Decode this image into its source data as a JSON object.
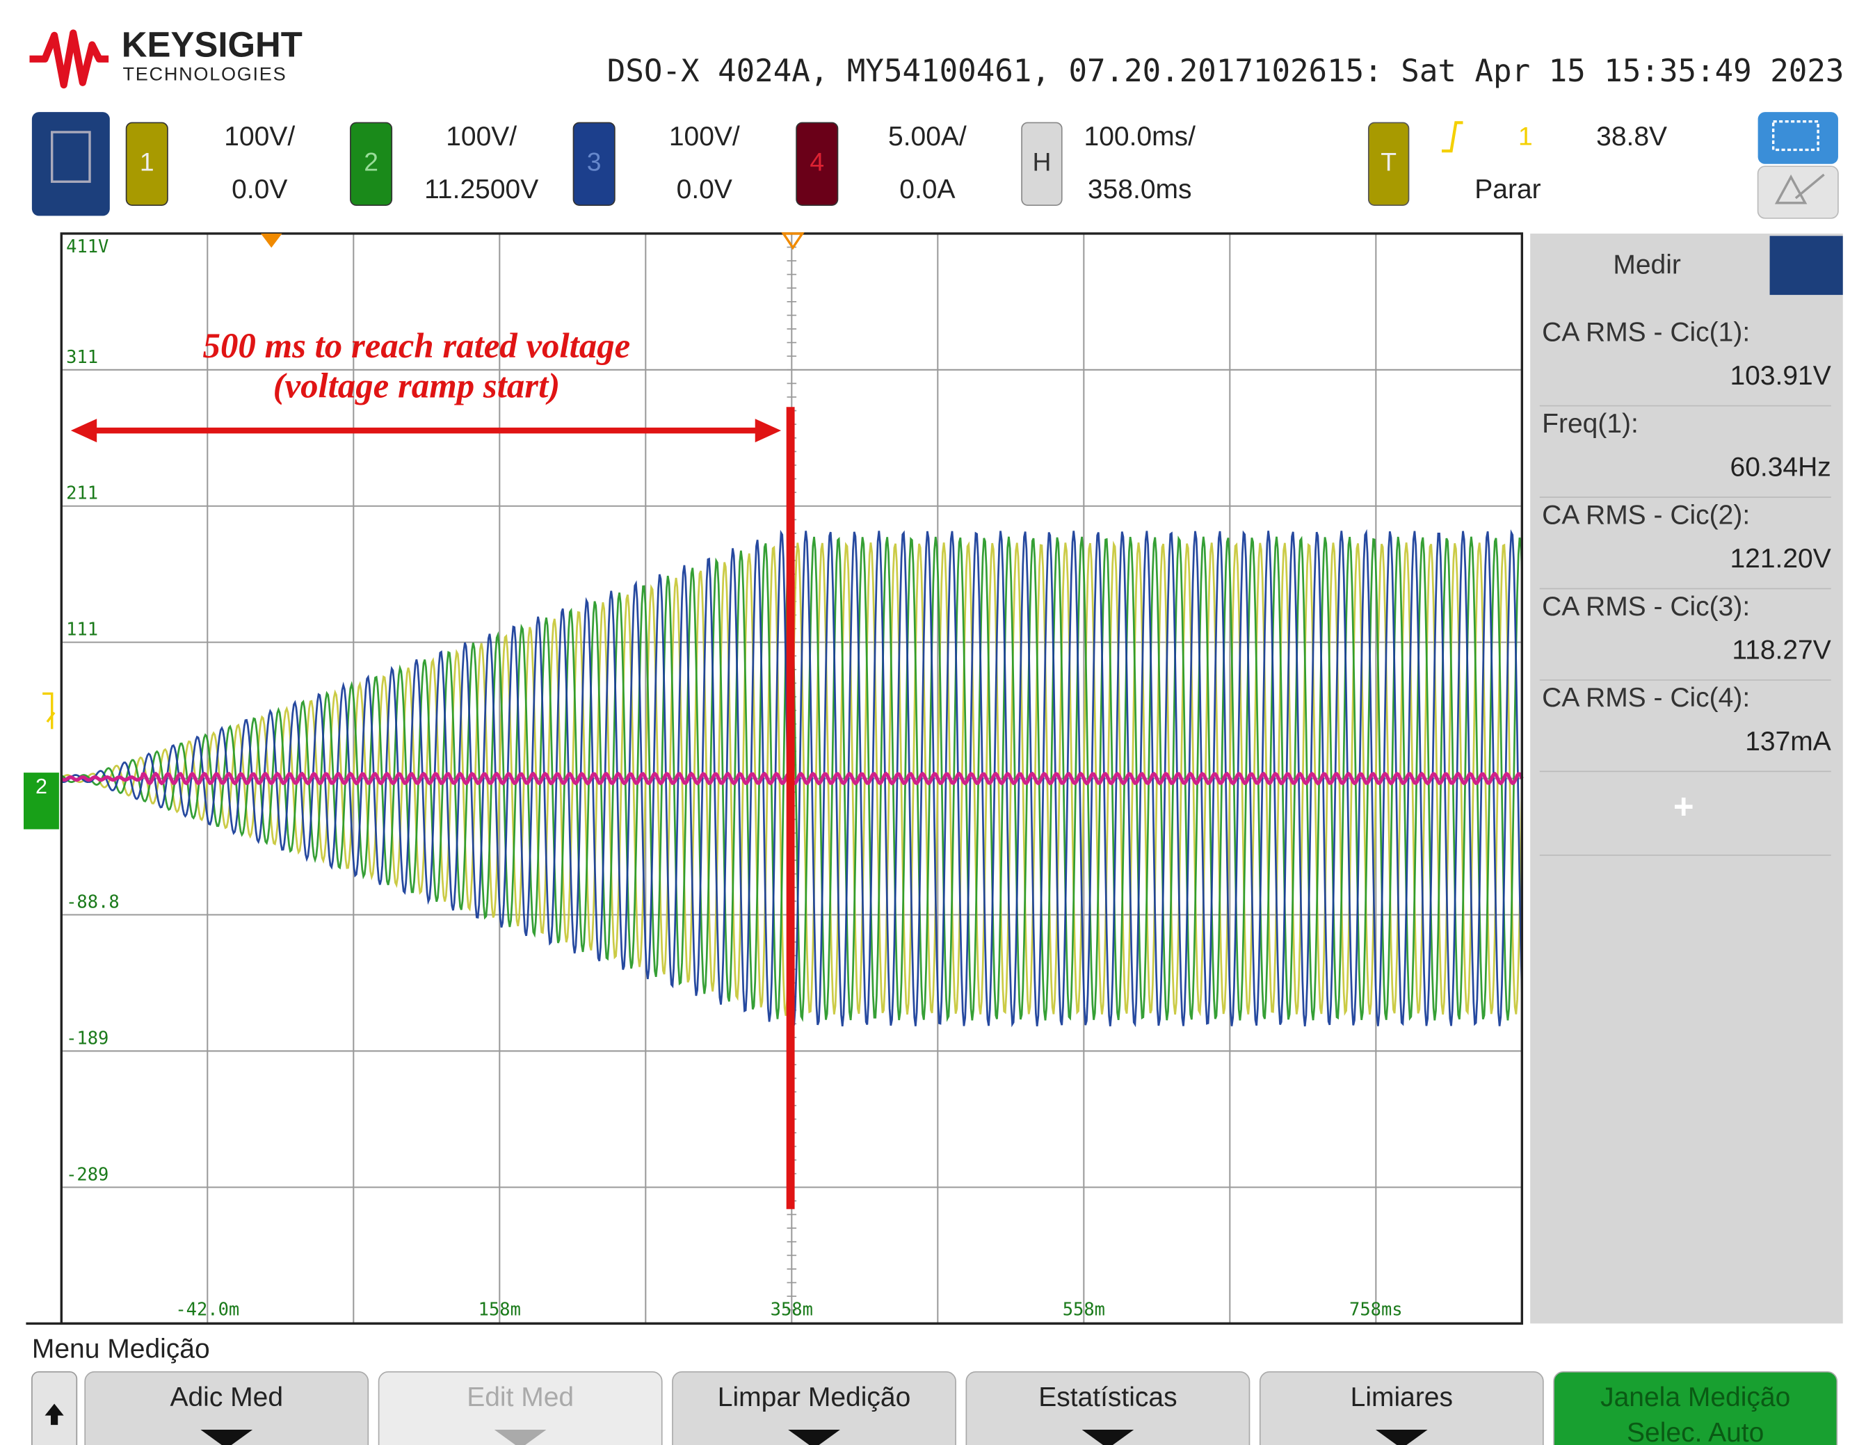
{
  "header": {
    "brand": "KEYSIGHT",
    "brand_sub": "TECHNOLOGIES",
    "instrument": "DSO-X 4024A, MY54100461, 07.20.2017102615: Sat Apr 15 15:35:49 2023"
  },
  "channels": [
    {
      "label": "1",
      "scale": "100V/",
      "offset": "0.0V"
    },
    {
      "label": "2",
      "scale": "100V/",
      "offset": "11.2500V"
    },
    {
      "label": "3",
      "scale": "100V/",
      "offset": "0.0V"
    },
    {
      "label": "4",
      "scale": "5.00A/",
      "offset": "0.0A"
    }
  ],
  "horizontal": {
    "label": "H",
    "scale": "100.0ms/",
    "delay": "358.0ms"
  },
  "trigger": {
    "label": "T",
    "source": "1",
    "level": "38.8V",
    "mode": "Parar"
  },
  "display": {
    "y_labels": [
      "411V",
      "311",
      "211",
      "111",
      "-88.8",
      "-189",
      "-289"
    ],
    "x_labels": [
      "-42.0m",
      "158m",
      "358m",
      "558m",
      "758ms"
    ]
  },
  "annotation": {
    "line1": "500 ms to reach rated voltage",
    "line2": "(voltage ramp start)"
  },
  "measure_panel": {
    "title": "Medir",
    "items": [
      {
        "label": "CA RMS - Cic(1):",
        "value": "103.91V"
      },
      {
        "label": "Freq(1):",
        "value": "60.34Hz"
      },
      {
        "label": "CA RMS - Cic(2):",
        "value": "121.20V"
      },
      {
        "label": "CA RMS - Cic(3):",
        "value": "118.27V"
      },
      {
        "label": "CA RMS - Cic(4):",
        "value": "137mA"
      }
    ]
  },
  "menu": {
    "title": "Menu Medição",
    "buttons": [
      {
        "lines": [
          "Adic Med"
        ]
      },
      {
        "lines": [
          "Edit Med"
        ]
      },
      {
        "lines": [
          "Limpar Medição"
        ]
      },
      {
        "lines": [
          "Estatísticas"
        ]
      },
      {
        "lines": [
          "Limiares"
        ]
      },
      {
        "lines": [
          "Janela Medição",
          "Selec. Auto"
        ]
      }
    ]
  }
}
